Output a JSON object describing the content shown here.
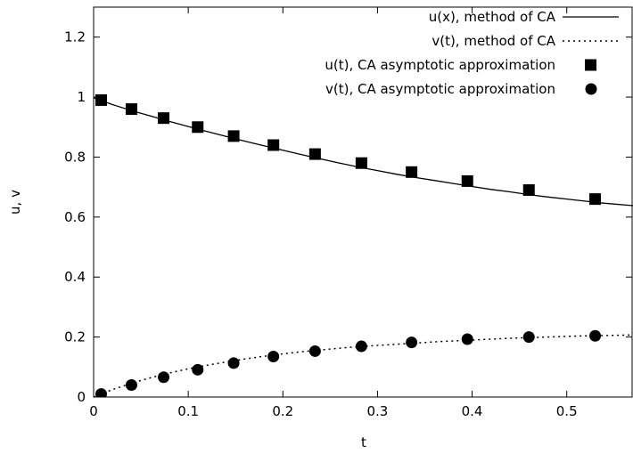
{
  "chart_data": {
    "type": "line",
    "xlabel": "t",
    "ylabel": "u, v",
    "xlim": [
      0,
      0.57
    ],
    "ylim": [
      0,
      1.3
    ],
    "x_ticks": [
      "0",
      "0.1",
      "0.2",
      "0.3",
      "0.4",
      "0.5"
    ],
    "x_tick_values": [
      0,
      0.1,
      0.2,
      0.3,
      0.4,
      0.5
    ],
    "y_ticks": [
      "0",
      "0.2",
      "0.4",
      "0.6",
      "0.8",
      "1",
      "1.2"
    ],
    "y_tick_values": [
      0,
      0.2,
      0.4,
      0.6,
      0.8,
      1.0,
      1.2
    ],
    "grid": false,
    "legend_position": "top-right",
    "series": [
      {
        "name": "u(x), method of CA",
        "style": "solid-line",
        "x": [
          0.0,
          0.02,
          0.04,
          0.06,
          0.08,
          0.1,
          0.12,
          0.14,
          0.16,
          0.18,
          0.2,
          0.22,
          0.24,
          0.26,
          0.28,
          0.3,
          0.32,
          0.34,
          0.36,
          0.38,
          0.4,
          0.42,
          0.44,
          0.46,
          0.48,
          0.5,
          0.52,
          0.54,
          0.57
        ],
        "y": [
          0.998,
          0.975,
          0.955,
          0.937,
          0.919,
          0.902,
          0.885,
          0.869,
          0.853,
          0.838,
          0.823,
          0.808,
          0.794,
          0.78,
          0.767,
          0.755,
          0.743,
          0.732,
          0.722,
          0.712,
          0.702,
          0.692,
          0.684,
          0.675,
          0.667,
          0.66,
          0.653,
          0.646,
          0.638
        ]
      },
      {
        "name": "v(t), method of CA",
        "style": "dotted-line",
        "x": [
          0.0,
          0.02,
          0.04,
          0.06,
          0.08,
          0.1,
          0.12,
          0.14,
          0.16,
          0.18,
          0.2,
          0.22,
          0.24,
          0.26,
          0.28,
          0.3,
          0.32,
          0.34,
          0.36,
          0.38,
          0.4,
          0.42,
          0.44,
          0.46,
          0.48,
          0.5,
          0.52,
          0.54,
          0.57
        ],
        "y": [
          0.0,
          0.025,
          0.046,
          0.064,
          0.08,
          0.094,
          0.106,
          0.117,
          0.127,
          0.136,
          0.144,
          0.151,
          0.157,
          0.163,
          0.168,
          0.172,
          0.176,
          0.18,
          0.184,
          0.187,
          0.19,
          0.193,
          0.196,
          0.198,
          0.2,
          0.202,
          0.204,
          0.205,
          0.207
        ]
      },
      {
        "name": "u(t), CA asymptotic approximation",
        "style": "square-marker",
        "x": [
          0.008,
          0.04,
          0.074,
          0.11,
          0.148,
          0.19,
          0.234,
          0.283,
          0.336,
          0.395,
          0.46,
          0.53
        ],
        "y": [
          0.99,
          0.96,
          0.93,
          0.9,
          0.87,
          0.84,
          0.81,
          0.78,
          0.75,
          0.72,
          0.69,
          0.66
        ]
      },
      {
        "name": "v(t), CA asymptotic approximation",
        "style": "circle-marker",
        "x": [
          0.008,
          0.04,
          0.074,
          0.11,
          0.148,
          0.19,
          0.234,
          0.283,
          0.336,
          0.395,
          0.46,
          0.53
        ],
        "y": [
          0.01,
          0.04,
          0.066,
          0.091,
          0.113,
          0.135,
          0.153,
          0.169,
          0.182,
          0.193,
          0.2,
          0.204
        ]
      }
    ]
  }
}
